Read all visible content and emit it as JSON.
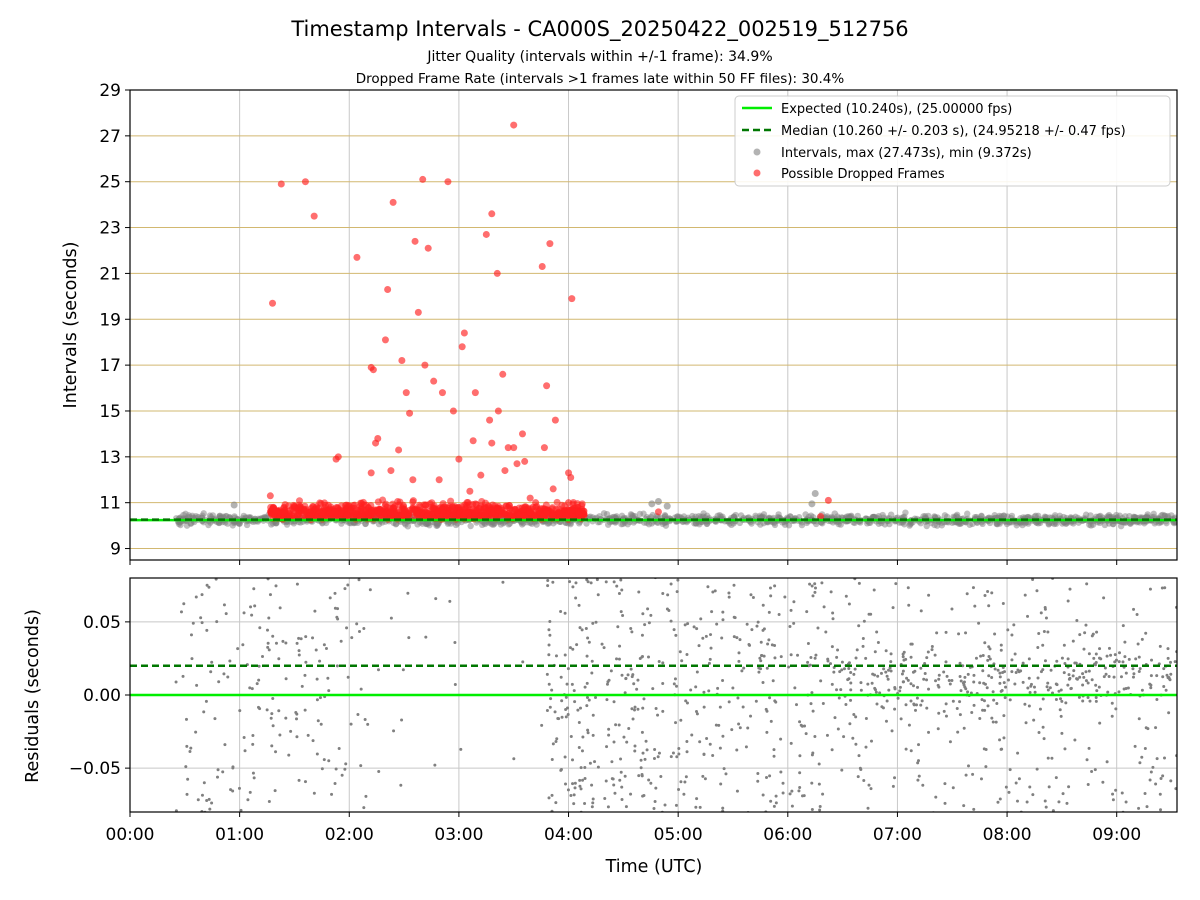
{
  "title": "Timestamp Intervals - CA000S_20250422_002519_512756",
  "subtitle1": "Jitter Quality (intervals within +/-1 frame): 34.9%",
  "subtitle2": "Dropped Frame Rate (intervals >1 frames late within 50 FF files): 30.4%",
  "colors": {
    "expected": "#00ee00",
    "median": "#007700",
    "intervals": "#808080",
    "dropped": "#ff2020",
    "hgrid": "#d2b870",
    "vgrid": "#c8c8c8"
  },
  "chart_data": [
    {
      "type": "scatter",
      "panel": "intervals",
      "xlabel": "",
      "ylabel": "Intervals (seconds)",
      "xlim": [
        0.0,
        9.55
      ],
      "ylim": [
        8.5,
        29
      ],
      "yticks": [
        "9",
        "11",
        "13",
        "15",
        "17",
        "19",
        "21",
        "23",
        "25",
        "27",
        "29"
      ],
      "grid": true,
      "legend_position": "top-right",
      "legend": [
        "Expected (10.240s), (25.00000 fps)",
        "Median (10.260 +/- 0.203 s), (24.95218 +/- 0.47 fps)",
        "Intervals, max (27.473s), min (9.372s)",
        "Possible Dropped Frames"
      ],
      "expected_interval": 10.24,
      "median_interval": 10.26,
      "interval_band": {
        "x_range": [
          0.42,
          9.55
        ],
        "typical_range": [
          9.9,
          10.6
        ],
        "max": 27.473,
        "min": 9.372
      },
      "dense_dropped_band": {
        "x_range": [
          1.28,
          4.15
        ],
        "typical_range": [
          10.0,
          11.3
        ]
      },
      "series": [
        {
          "name": "Possible Dropped Frames",
          "points": [
            [
              1.3,
              19.7
            ],
            [
              1.28,
              11.3
            ],
            [
              1.38,
              24.9
            ],
            [
              1.6,
              25.0
            ],
            [
              1.68,
              23.5
            ],
            [
              1.9,
              13.0
            ],
            [
              1.88,
              12.9
            ],
            [
              2.07,
              21.7
            ],
            [
              2.2,
              16.9
            ],
            [
              2.22,
              16.8
            ],
            [
              2.24,
              13.6
            ],
            [
              2.26,
              13.8
            ],
            [
              2.2,
              12.3
            ],
            [
              2.33,
              18.1
            ],
            [
              2.35,
              20.3
            ],
            [
              2.4,
              24.1
            ],
            [
              2.38,
              12.4
            ],
            [
              2.45,
              13.3
            ],
            [
              2.48,
              17.2
            ],
            [
              2.52,
              15.8
            ],
            [
              2.55,
              14.9
            ],
            [
              2.58,
              12.0
            ],
            [
              2.6,
              22.4
            ],
            [
              2.63,
              19.3
            ],
            [
              2.67,
              25.1
            ],
            [
              2.69,
              17.0
            ],
            [
              2.72,
              22.1
            ],
            [
              2.77,
              16.3
            ],
            [
              2.82,
              12.0
            ],
            [
              2.85,
              15.8
            ],
            [
              2.9,
              25.0
            ],
            [
              2.95,
              15.0
            ],
            [
              3.0,
              12.9
            ],
            [
              3.03,
              17.8
            ],
            [
              3.05,
              18.4
            ],
            [
              3.1,
              11.5
            ],
            [
              3.13,
              13.7
            ],
            [
              3.15,
              15.8
            ],
            [
              3.2,
              12.2
            ],
            [
              3.25,
              22.7
            ],
            [
              3.28,
              14.6
            ],
            [
              3.3,
              23.6
            ],
            [
              3.3,
              13.6
            ],
            [
              3.35,
              21.0
            ],
            [
              3.36,
              15.0
            ],
            [
              3.4,
              16.6
            ],
            [
              3.42,
              12.4
            ],
            [
              3.45,
              13.4
            ],
            [
              3.5,
              13.4
            ],
            [
              3.5,
              27.47
            ],
            [
              3.53,
              12.7
            ],
            [
              3.58,
              14.0
            ],
            [
              3.6,
              12.8
            ],
            [
              3.65,
              11.2
            ],
            [
              3.7,
              11.0
            ],
            [
              3.76,
              21.3
            ],
            [
              3.78,
              13.4
            ],
            [
              3.8,
              16.1
            ],
            [
              3.83,
              22.3
            ],
            [
              3.86,
              11.6
            ],
            [
              3.88,
              14.6
            ],
            [
              4.0,
              12.3
            ],
            [
              4.02,
              12.1
            ],
            [
              4.03,
              19.9
            ],
            [
              4.0,
              11.0
            ],
            [
              4.82,
              10.6
            ],
            [
              6.37,
              11.1
            ],
            [
              6.3,
              10.4
            ]
          ]
        },
        {
          "name": "Intervals",
          "points": [
            [
              4.82,
              11.05
            ],
            [
              6.25,
              11.4
            ],
            [
              6.22,
              10.95
            ],
            [
              0.95,
              10.9
            ],
            [
              4.76,
              10.95
            ],
            [
              4.9,
              10.85
            ]
          ]
        }
      ]
    },
    {
      "type": "scatter",
      "panel": "residuals",
      "xlabel": "Time (UTC)",
      "ylabel": "Residuals (seconds)",
      "xlim": [
        0.0,
        9.55
      ],
      "ylim": [
        -0.08,
        0.08
      ],
      "yticks": [
        "0.05",
        "0.00",
        "−0.05"
      ],
      "xticks": [
        "00:00",
        "01:00",
        "02:00",
        "03:00",
        "04:00",
        "05:00",
        "06:00",
        "07:00",
        "08:00",
        "09:00"
      ],
      "grid": true,
      "expected_residual": 0.0,
      "median_residual": 0.02,
      "residual_spread": {
        "x_range": [
          0.42,
          9.55
        ],
        "range": [
          -0.08,
          0.08
        ],
        "gap_x_range": [
          2.15,
          3.8
        ]
      }
    }
  ]
}
